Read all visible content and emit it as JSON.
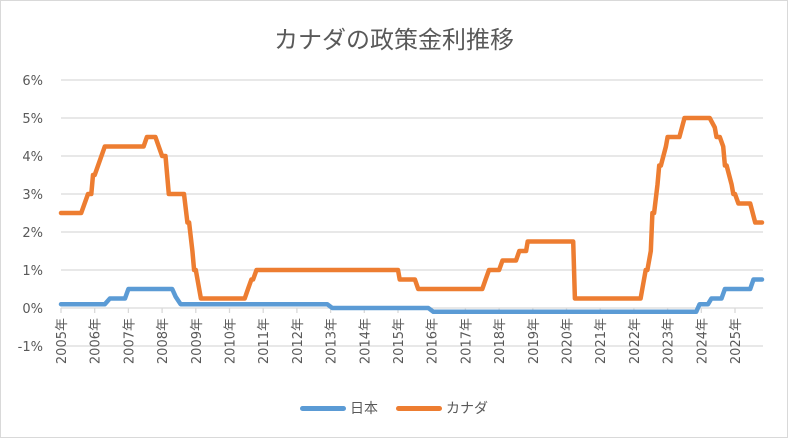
{
  "chart_data": {
    "type": "line",
    "title": "カナダの政策金利推移",
    "xlabel": "",
    "ylabel": "",
    "ylim": [
      -1,
      6
    ],
    "yticks": [
      "-1%",
      "0%",
      "1%",
      "2%",
      "3%",
      "4%",
      "5%",
      "6%"
    ],
    "xticks": [
      "2005年",
      "2006年",
      "2007年",
      "2008年",
      "2009年",
      "2010年",
      "2011年",
      "2012年",
      "2013年",
      "2014年",
      "2015年",
      "2016年",
      "2017年",
      "2018年",
      "2019年",
      "2020年",
      "2021年",
      "2022年",
      "2023年",
      "2024年",
      "2025年"
    ],
    "grid": true,
    "legend_position": "bottom",
    "series": [
      {
        "name": "日本",
        "color": "#5b9bd5",
        "points": [
          [
            2005.0,
            0.1
          ],
          [
            2006.3,
            0.1
          ],
          [
            2006.45,
            0.25
          ],
          [
            2006.9,
            0.25
          ],
          [
            2007.0,
            0.5
          ],
          [
            2008.3,
            0.5
          ],
          [
            2008.4,
            0.3
          ],
          [
            2008.55,
            0.1
          ],
          [
            2012.9,
            0.1
          ],
          [
            2013.05,
            0.0
          ],
          [
            2015.9,
            0.0
          ],
          [
            2016.05,
            -0.1
          ],
          [
            2023.85,
            -0.1
          ],
          [
            2023.95,
            0.1
          ],
          [
            2024.2,
            0.1
          ],
          [
            2024.3,
            0.25
          ],
          [
            2024.6,
            0.25
          ],
          [
            2024.7,
            0.5
          ],
          [
            2025.45,
            0.5
          ],
          [
            2025.55,
            0.75
          ],
          [
            2025.8,
            0.75
          ]
        ]
      },
      {
        "name": "カナダ",
        "color": "#ed7d31",
        "points": [
          [
            2005.0,
            2.5
          ],
          [
            2005.6,
            2.5
          ],
          [
            2005.8,
            3.0
          ],
          [
            2005.9,
            3.0
          ],
          [
            2005.95,
            3.5
          ],
          [
            2006.0,
            3.5
          ],
          [
            2006.3,
            4.25
          ],
          [
            2007.45,
            4.25
          ],
          [
            2007.55,
            4.5
          ],
          [
            2007.8,
            4.5
          ],
          [
            2008.0,
            4.0
          ],
          [
            2008.1,
            4.0
          ],
          [
            2008.2,
            3.0
          ],
          [
            2008.65,
            3.0
          ],
          [
            2008.75,
            2.25
          ],
          [
            2008.8,
            2.25
          ],
          [
            2008.9,
            1.5
          ],
          [
            2008.95,
            1.0
          ],
          [
            2009.0,
            1.0
          ],
          [
            2009.15,
            0.25
          ],
          [
            2010.45,
            0.25
          ],
          [
            2010.55,
            0.5
          ],
          [
            2010.65,
            0.75
          ],
          [
            2010.7,
            0.75
          ],
          [
            2010.8,
            1.0
          ],
          [
            2015.0,
            1.0
          ],
          [
            2015.05,
            0.75
          ],
          [
            2015.5,
            0.75
          ],
          [
            2015.6,
            0.5
          ],
          [
            2017.5,
            0.5
          ],
          [
            2017.6,
            0.75
          ],
          [
            2017.7,
            1.0
          ],
          [
            2018.0,
            1.0
          ],
          [
            2018.1,
            1.25
          ],
          [
            2018.5,
            1.25
          ],
          [
            2018.6,
            1.5
          ],
          [
            2018.8,
            1.5
          ],
          [
            2018.85,
            1.75
          ],
          [
            2020.2,
            1.75
          ],
          [
            2020.25,
            0.25
          ],
          [
            2022.2,
            0.25
          ],
          [
            2022.25,
            0.5
          ],
          [
            2022.35,
            1.0
          ],
          [
            2022.4,
            1.0
          ],
          [
            2022.5,
            1.5
          ],
          [
            2022.55,
            2.5
          ],
          [
            2022.6,
            2.5
          ],
          [
            2022.7,
            3.25
          ],
          [
            2022.75,
            3.75
          ],
          [
            2022.8,
            3.75
          ],
          [
            2022.95,
            4.25
          ],
          [
            2023.0,
            4.5
          ],
          [
            2023.35,
            4.5
          ],
          [
            2023.5,
            5.0
          ],
          [
            2024.25,
            5.0
          ],
          [
            2024.4,
            4.75
          ],
          [
            2024.45,
            4.5
          ],
          [
            2024.55,
            4.5
          ],
          [
            2024.65,
            4.25
          ],
          [
            2024.7,
            3.75
          ],
          [
            2024.75,
            3.75
          ],
          [
            2024.9,
            3.25
          ],
          [
            2024.95,
            3.0
          ],
          [
            2025.0,
            3.0
          ],
          [
            2025.1,
            2.75
          ],
          [
            2025.45,
            2.75
          ],
          [
            2025.6,
            2.25
          ],
          [
            2025.8,
            2.25
          ]
        ]
      }
    ]
  },
  "legend": {
    "items": [
      {
        "label": "日本",
        "color": "#5b9bd5"
      },
      {
        "label": "カナダ",
        "color": "#ed7d31"
      }
    ]
  },
  "colors": {
    "grid": "#d9d9d9",
    "text": "#595959"
  }
}
